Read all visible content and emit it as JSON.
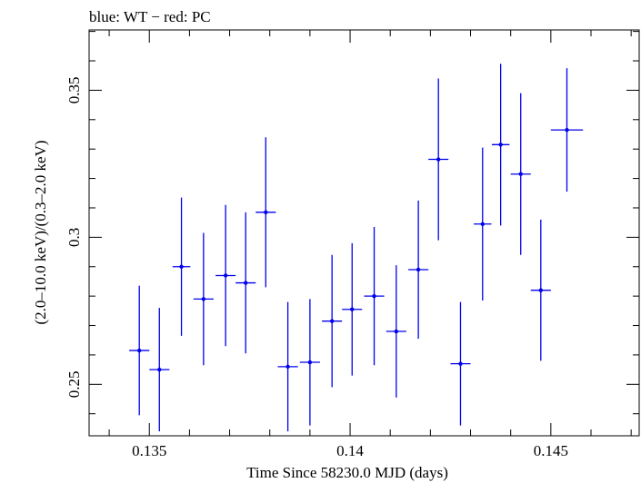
{
  "chart_data": {
    "type": "scatter",
    "title": "blue: WT − red: PC",
    "xlabel": "Time Since 58230.0 MJD (days)",
    "ylabel": "(2.0–10.0 keV)/(0.3–2.0 keV)",
    "xlim": [
      0.1335,
      0.1472
    ],
    "ylim": [
      0.2325,
      0.3705
    ],
    "x_ticks": [
      {
        "value": 0.135,
        "label": "0.135"
      },
      {
        "value": 0.14,
        "label": "0.14"
      },
      {
        "value": 0.145,
        "label": "0.145"
      }
    ],
    "y_ticks": [
      {
        "value": 0.25,
        "label": "0.25"
      },
      {
        "value": 0.3,
        "label": "0.3"
      },
      {
        "value": 0.35,
        "label": "0.35"
      }
    ],
    "series": [
      {
        "color": "#0000ee",
        "points": [
          {
            "x": 0.13475,
            "xerr": 0.00025,
            "y": 0.2615,
            "yerr": 0.022
          },
          {
            "x": 0.13525,
            "xerr": 0.00025,
            "y": 0.255,
            "yerr": 0.021
          },
          {
            "x": 0.1358,
            "xerr": 0.00022,
            "y": 0.29,
            "yerr": 0.0235
          },
          {
            "x": 0.13635,
            "xerr": 0.00025,
            "y": 0.279,
            "yerr": 0.0225
          },
          {
            "x": 0.1369,
            "xerr": 0.00025,
            "y": 0.287,
            "yerr": 0.024
          },
          {
            "x": 0.1374,
            "xerr": 0.00025,
            "y": 0.2845,
            "yerr": 0.024
          },
          {
            "x": 0.1379,
            "xerr": 0.00025,
            "y": 0.3085,
            "yerr": 0.0255
          },
          {
            "x": 0.13845,
            "xerr": 0.00025,
            "y": 0.256,
            "yerr": 0.022
          },
          {
            "x": 0.139,
            "xerr": 0.00025,
            "y": 0.2575,
            "yerr": 0.0215
          },
          {
            "x": 0.13955,
            "xerr": 0.00025,
            "y": 0.2715,
            "yerr": 0.0225
          },
          {
            "x": 0.14005,
            "xerr": 0.00025,
            "y": 0.2755,
            "yerr": 0.0225
          },
          {
            "x": 0.1406,
            "xerr": 0.00025,
            "y": 0.28,
            "yerr": 0.0235
          },
          {
            "x": 0.14115,
            "xerr": 0.00025,
            "y": 0.268,
            "yerr": 0.0225
          },
          {
            "x": 0.1417,
            "xerr": 0.00025,
            "y": 0.289,
            "yerr": 0.0235
          },
          {
            "x": 0.1422,
            "xerr": 0.00025,
            "y": 0.3265,
            "yerr": 0.0275
          },
          {
            "x": 0.14275,
            "xerr": 0.00025,
            "y": 0.257,
            "yerr": 0.021
          },
          {
            "x": 0.1433,
            "xerr": 0.00022,
            "y": 0.3045,
            "yerr": 0.026
          },
          {
            "x": 0.14375,
            "xerr": 0.00022,
            "y": 0.3315,
            "yerr": 0.0275
          },
          {
            "x": 0.14425,
            "xerr": 0.00025,
            "y": 0.3215,
            "yerr": 0.0275
          },
          {
            "x": 0.14475,
            "xerr": 0.00025,
            "y": 0.282,
            "yerr": 0.024
          },
          {
            "x": 0.1454,
            "xerr": 0.0004,
            "y": 0.3365,
            "yerr": 0.021
          }
        ]
      }
    ]
  }
}
